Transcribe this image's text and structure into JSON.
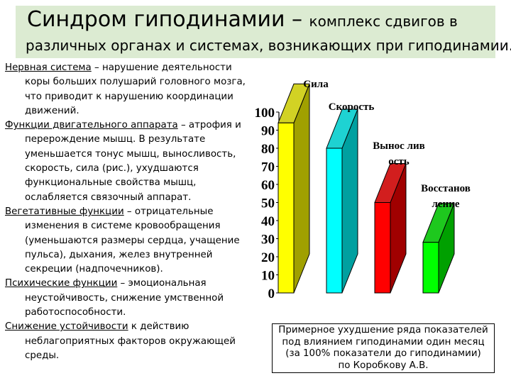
{
  "title": {
    "main": "Синдром гиподинамии – ",
    "rest": "комплекс сдвигов в",
    "line2": "различных органах и системах, возникающих при гиподинамии."
  },
  "paragraphs": [
    {
      "term": "Нервная система",
      "text": " – нарушение деятельности коры больших полушарий головного мозга, что приводит к нарушению координации движений."
    },
    {
      "term": "Функции двигательного аппарата",
      "text": " – атрофия и перерождение мышц. В результате уменьшается тонус мышц, выносливость, скорость, сила (рис.), ухудшаются функциональные свойства мышц, ослабляется связочный аппарат."
    },
    {
      "term": "Вегетативные функции",
      "text": " – отрицательные изменения в системе кровообращения (уменьшаются размеры сердца, учащение пульса), дыхания, желез внутренней секреции (надпочечников)."
    },
    {
      "term": "Психические функции",
      "text": " – эмоциональная неустойчивость, снижение умственной работоспособности."
    },
    {
      "term": "Снижение устойчивости",
      "text": " к действию неблагоприятных факторов окружающей среды."
    }
  ],
  "chart_data": {
    "type": "bar",
    "categories": [
      "Сила",
      "Скорость",
      "Выносливость",
      "Восстановление"
    ],
    "category_labels": [
      [
        "Сила"
      ],
      [
        "Скорость"
      ],
      [
        "Выноc лив",
        "ость"
      ],
      [
        "Восстанов",
        "ление"
      ]
    ],
    "values": [
      94,
      80,
      50,
      28
    ],
    "colors": [
      "#ffff00",
      "#00ffff",
      "#ff0000",
      "#00ff00"
    ],
    "top_colors": [
      "#d2d224",
      "#1ed2d2",
      "#d21e1e",
      "#1ec81e"
    ],
    "side_colors": [
      "#a0a000",
      "#00a0a0",
      "#a00000",
      "#00a000"
    ],
    "ylim": [
      0,
      100
    ],
    "yticks": [
      0,
      10,
      20,
      30,
      40,
      50,
      60,
      70,
      80,
      90,
      100
    ]
  },
  "caption": [
    "Примерное ухудшение ряда показателей",
    "под влиянием гиподинамии один месяц",
    "(за 100% показатели до гиподинамии)",
    "по Коробкову А.В."
  ]
}
